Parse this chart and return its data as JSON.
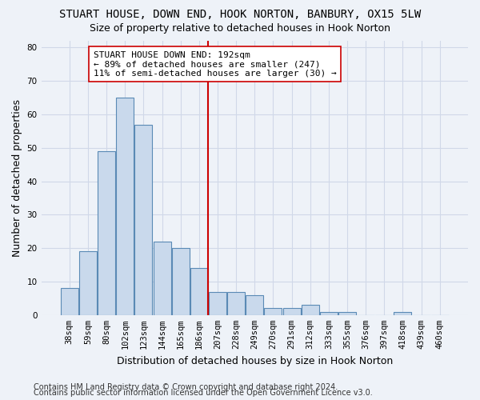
{
  "title": "STUART HOUSE, DOWN END, HOOK NORTON, BANBURY, OX15 5LW",
  "subtitle": "Size of property relative to detached houses in Hook Norton",
  "xlabel": "Distribution of detached houses by size in Hook Norton",
  "ylabel": "Number of detached properties",
  "bins": [
    "38sqm",
    "59sqm",
    "80sqm",
    "102sqm",
    "123sqm",
    "144sqm",
    "165sqm",
    "186sqm",
    "207sqm",
    "228sqm",
    "249sqm",
    "270sqm",
    "291sqm",
    "312sqm",
    "333sqm",
    "355sqm",
    "376sqm",
    "397sqm",
    "418sqm",
    "439sqm",
    "460sqm"
  ],
  "values": [
    8,
    19,
    49,
    65,
    57,
    22,
    20,
    14,
    7,
    7,
    6,
    2,
    2,
    3,
    1,
    1,
    0,
    0,
    1,
    0,
    0
  ],
  "bar_color": "#c9d9ec",
  "bar_edge_color": "#5a8ab5",
  "vline_bin_index": 7.5,
  "vline_color": "#cc0000",
  "annotation_text": "STUART HOUSE DOWN END: 192sqm\n← 89% of detached houses are smaller (247)\n11% of semi-detached houses are larger (30) →",
  "annotation_box_color": "#ffffff",
  "annotation_box_edge_color": "#cc0000",
  "ylim": [
    0,
    82
  ],
  "yticks": [
    0,
    10,
    20,
    30,
    40,
    50,
    60,
    70,
    80
  ],
  "grid_color": "#d0d8e8",
  "background_color": "#eef2f8",
  "footnote1": "Contains HM Land Registry data © Crown copyright and database right 2024.",
  "footnote2": "Contains public sector information licensed under the Open Government Licence v3.0.",
  "title_fontsize": 10,
  "subtitle_fontsize": 9,
  "xlabel_fontsize": 9,
  "ylabel_fontsize": 9,
  "tick_fontsize": 7.5,
  "annotation_fontsize": 8,
  "footnote_fontsize": 7
}
